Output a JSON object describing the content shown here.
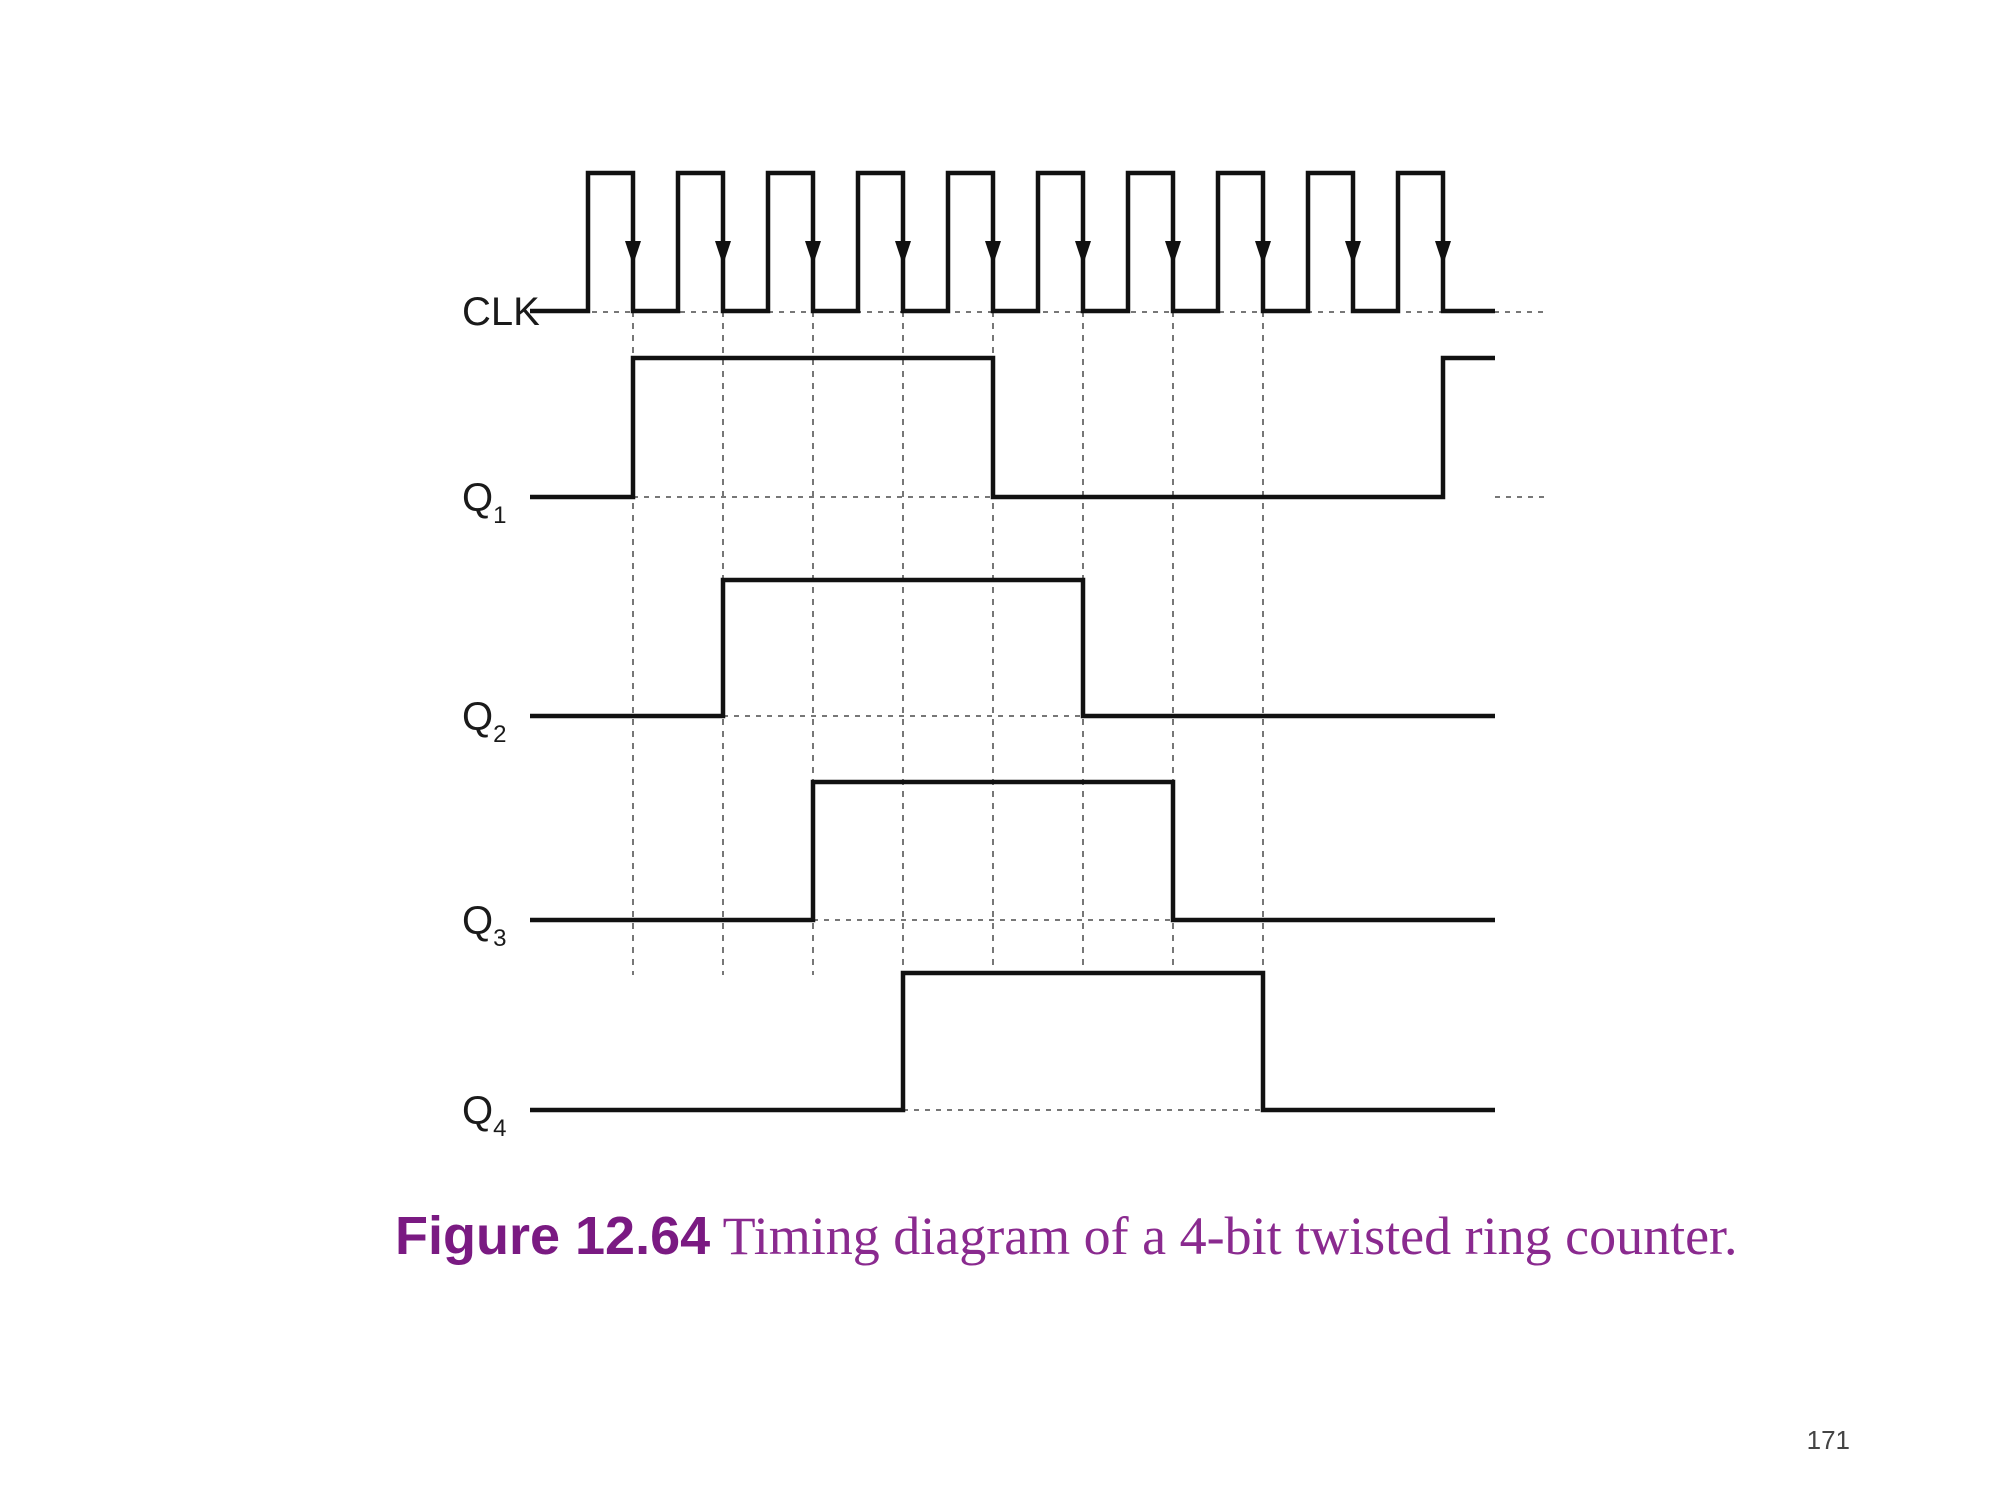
{
  "diagram": {
    "signals": [
      {
        "name": "CLK",
        "sub": ""
      },
      {
        "name": "Q",
        "sub": "1"
      },
      {
        "name": "Q",
        "sub": "2"
      },
      {
        "name": "Q",
        "sub": "3"
      },
      {
        "name": "Q",
        "sub": "4"
      }
    ],
    "clock_cycles": 10,
    "waveforms": {
      "Q1": [
        0,
        1,
        1,
        1,
        1,
        0,
        0,
        0,
        0,
        0,
        1
      ],
      "Q2": [
        0,
        0,
        1,
        1,
        1,
        1,
        0,
        0,
        0,
        0,
        0
      ],
      "Q3": [
        0,
        0,
        0,
        1,
        1,
        1,
        1,
        0,
        0,
        0,
        0
      ],
      "Q4": [
        0,
        0,
        0,
        0,
        1,
        1,
        1,
        1,
        0,
        0,
        0
      ]
    },
    "edge_type": "falling"
  },
  "caption": {
    "figure_number": "Figure 12.64",
    "text": " Timing diagram of a 4-bit twisted ring counter."
  },
  "page_number": "171"
}
